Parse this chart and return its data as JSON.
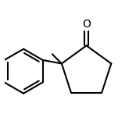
{
  "bg_color": "#ffffff",
  "line_color": "#000000",
  "line_width": 1.5,
  "figsize": [
    1.74,
    1.64
  ],
  "dpi": 100,
  "xlim": [
    0.0,
    1.0
  ],
  "ylim": [
    0.0,
    1.0
  ]
}
